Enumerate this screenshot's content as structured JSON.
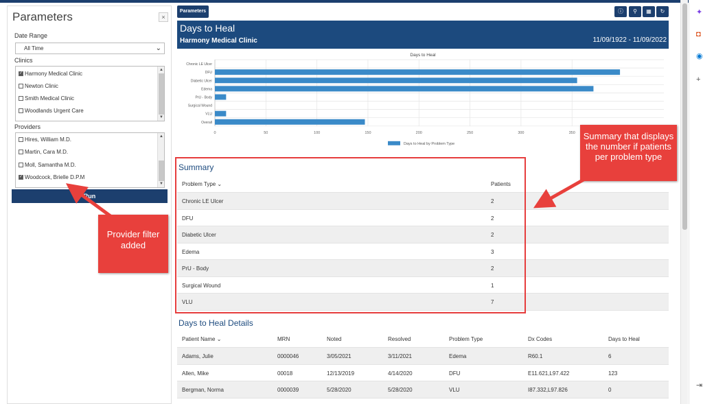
{
  "params": {
    "title": "Parameters",
    "close": "×",
    "date_range_label": "Date Range",
    "date_range_value": "All Time",
    "clinics_label": "Clinics",
    "clinics": [
      {
        "label": "Harmony Medical Clinic",
        "checked": true
      },
      {
        "label": "Newton Clinic",
        "checked": false
      },
      {
        "label": "Smith Medical Clinic",
        "checked": false
      },
      {
        "label": "Woodlands Urgent Care",
        "checked": false
      }
    ],
    "providers_label": "Providers",
    "providers": [
      {
        "label": "Hires, William M.D.",
        "checked": false
      },
      {
        "label": "Martin, Cara M.D.",
        "checked": false
      },
      {
        "label": "Moll, Samantha M.D.",
        "checked": false
      },
      {
        "label": "Woodcock, Brielle D.P.M",
        "checked": true
      }
    ],
    "run_label": "Run"
  },
  "toolbar": {
    "parameters_tab": "Parameters",
    "icons": [
      "info-icon",
      "pin-icon",
      "table-icon",
      "refresh-icon"
    ]
  },
  "report": {
    "title": "Days to Heal",
    "clinic": "Harmony Medical Clinic",
    "date_range": "11/09/1922 - 11/09/2022"
  },
  "chart_data": {
    "type": "bar",
    "orientation": "horizontal",
    "title": "Days to Heal",
    "categories": [
      "Chronic LE Ulcer",
      "DFU",
      "Diabetic Ulcer",
      "Edema",
      "PrU - Body",
      "Surgical Wound",
      "VLU",
      "Overall"
    ],
    "series": [
      {
        "name": "Days to Heal by Problem Type",
        "values": [
          0,
          397,
          355,
          371,
          11,
          0,
          11,
          147
        ]
      }
    ],
    "xticks": [
      "0",
      "50",
      "100",
      "150",
      "200",
      "250",
      "300",
      "350"
    ],
    "xlim": [
      0,
      440
    ],
    "grid": true,
    "legend_position": "bottom",
    "bar_color": "#3a8ac8"
  },
  "summary": {
    "title": "Summary",
    "headers": [
      "Problem Type ⌄",
      "Patients"
    ],
    "rows": [
      [
        "Chronic LE Ulcer",
        "2"
      ],
      [
        "DFU",
        "2"
      ],
      [
        "Diabetic Ulcer",
        "2"
      ],
      [
        "Edema",
        "3"
      ],
      [
        "PrU - Body",
        "2"
      ],
      [
        "Surgical Wound",
        "1"
      ],
      [
        "VLU",
        "7"
      ]
    ]
  },
  "details": {
    "title": "Days to Heal Details",
    "headers": [
      "Patient Name ⌄",
      "MRN",
      "Noted",
      "Resolved",
      "Problem Type",
      "Dx Codes",
      "Days to Heal"
    ],
    "rows": [
      [
        "Adams, Julie",
        "0000046",
        "3/05/2021",
        "3/11/2021",
        "Edema",
        "R60.1",
        "6"
      ],
      [
        "Allen, Mike",
        "00018",
        "12/13/2019",
        "4/14/2020",
        "DFU",
        "E11.621,L97.422",
        "123"
      ],
      [
        "Bergman, Norma",
        "0000039",
        "5/28/2020",
        "5/28/2020",
        "VLU",
        "I87.332,L97.826",
        "0"
      ]
    ]
  },
  "callouts": {
    "provider": "Provider filter added",
    "summary": "Summary that displays the number if patients per problem type"
  },
  "colors": {
    "navy": "#1c3f6e",
    "header_blue": "#1c4a7e",
    "bar": "#3a8ac8",
    "callout_red": "#e8403c"
  }
}
